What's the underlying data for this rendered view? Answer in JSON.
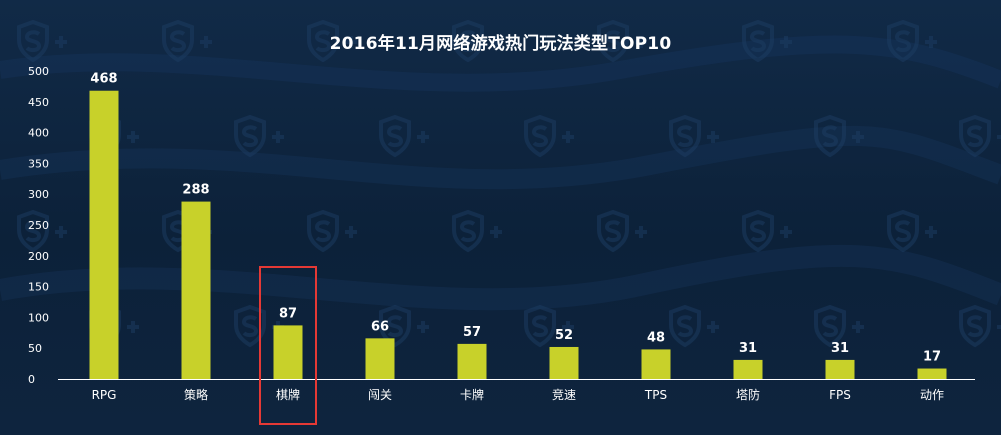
{
  "chart_data": {
    "type": "bar",
    "title": "2016年11月网络游戏热门玩法类型TOP10",
    "categories": [
      "RPG",
      "策略",
      "棋牌",
      "闯关",
      "卡牌",
      "竞速",
      "TPS",
      "塔防",
      "FPS",
      "动作"
    ],
    "values": [
      468,
      288,
      87,
      66,
      57,
      52,
      48,
      31,
      31,
      17
    ],
    "ylim": [
      0,
      500
    ],
    "yticks": [
      0,
      50,
      100,
      150,
      200,
      250,
      300,
      350,
      400,
      450,
      500
    ],
    "grid": false,
    "highlight_category": "棋牌"
  },
  "colors": {
    "bar": "#c8d12a",
    "background": "#0f2540",
    "text": "#ffffff",
    "highlight_box": "#e53935"
  }
}
